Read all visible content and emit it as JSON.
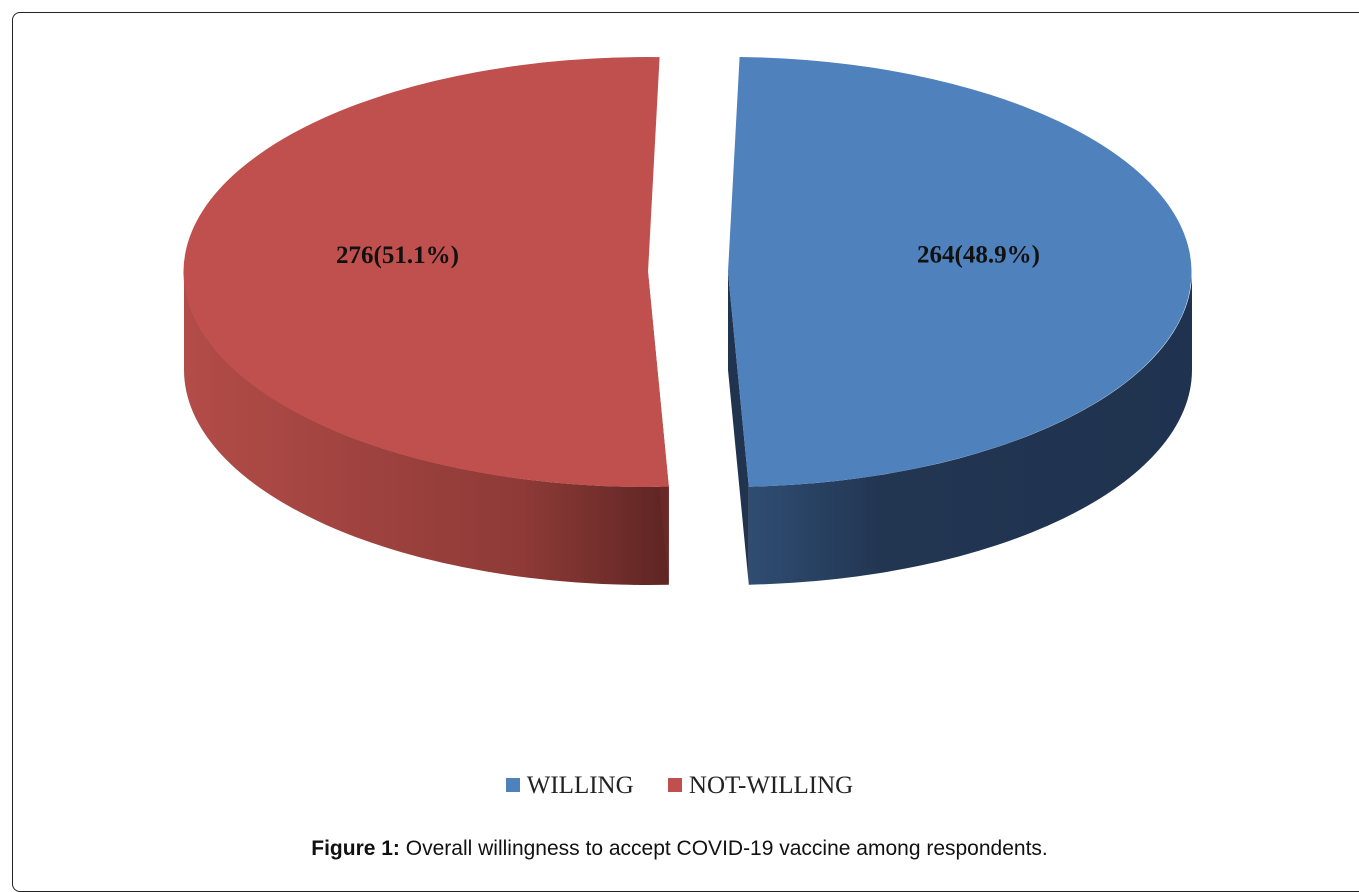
{
  "chart_data": {
    "type": "pie",
    "style": "3d-exploded",
    "categories": [
      "WILLING",
      "NOT-WILLING"
    ],
    "values": [
      264,
      276
    ],
    "labels": [
      "264(48.9%)",
      "276(51.1%)"
    ],
    "colors": [
      "#4f81bd",
      "#c0504d"
    ],
    "legend_placement": "bottom"
  },
  "legend": {
    "items": [
      {
        "label": "WILLING",
        "color": "#4f81bd"
      },
      {
        "label": "NOT-WILLING",
        "color": "#c0504d"
      }
    ]
  },
  "caption": {
    "prefix": "Figure 1:",
    "text": " Overall willingness to accept COVID-19 vaccine among respondents."
  }
}
